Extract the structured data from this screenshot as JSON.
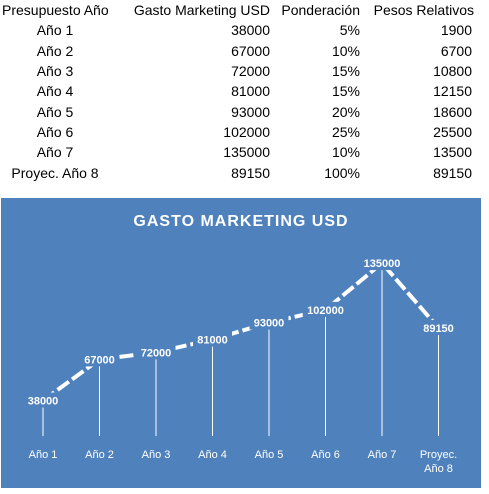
{
  "table": {
    "headers": [
      "Presupuesto Año",
      "Gasto Marketing USD",
      "Ponderación",
      "Pesos Relativos"
    ],
    "rows": [
      [
        "Año 1",
        "38000",
        "5%",
        "1900"
      ],
      [
        "Año 2",
        "67000",
        "10%",
        "6700"
      ],
      [
        "Año 3",
        "72000",
        "15%",
        "10800"
      ],
      [
        "Año 4",
        "81000",
        "15%",
        "12150"
      ],
      [
        "Año 5",
        "93000",
        "20%",
        "18600"
      ],
      [
        "Año 6",
        "102000",
        "25%",
        "25500"
      ],
      [
        "Año 7",
        "135000",
        "10%",
        "13500"
      ],
      [
        "Proyec. Año 8",
        "89150",
        "100%",
        "89150"
      ]
    ]
  },
  "chart_data": {
    "type": "line",
    "title": "GASTO MARKETING USD",
    "categories": [
      "Año 1",
      "Año 2",
      "Año 3",
      "Año 4",
      "Año 5",
      "Año 6",
      "Año 7",
      "Proyec. Año 8"
    ],
    "series": [
      {
        "values": [
          38000,
          67000,
          72000,
          81000,
          93000,
          102000,
          135000,
          89150
        ]
      }
    ],
    "data_labels": true,
    "drop_lines": true,
    "legend": "none",
    "grid": false,
    "y_axis_visible": false,
    "colors": {
      "background": "#4F81BD",
      "line": "#FFFFFF",
      "text": "#FFFFFF"
    }
  }
}
